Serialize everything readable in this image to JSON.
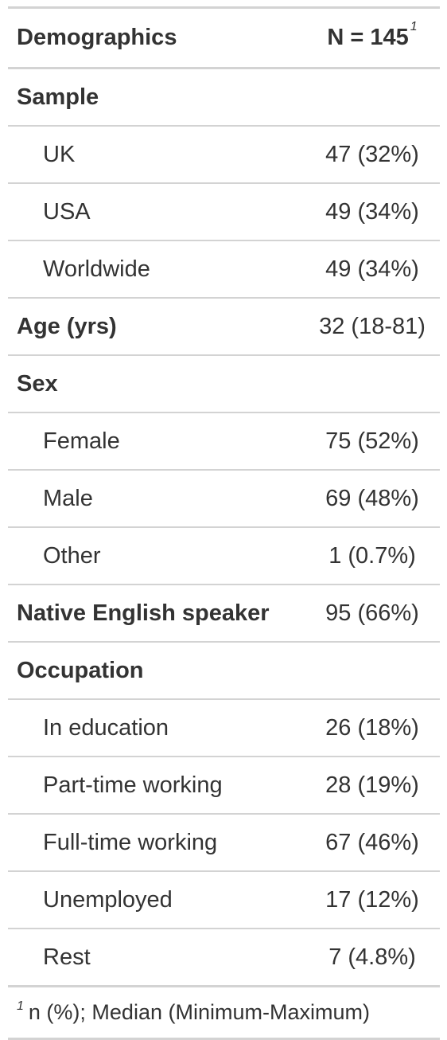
{
  "header": {
    "col_label": "Demographics",
    "col_value": "N = 145",
    "col_value_marker": "1"
  },
  "rows": [
    {
      "label": "Sample",
      "value": "",
      "kind": "group"
    },
    {
      "label": "UK",
      "value": "47 (32%)",
      "kind": "sub"
    },
    {
      "label": "USA",
      "value": "49 (34%)",
      "kind": "sub"
    },
    {
      "label": "Worldwide",
      "value": "49 (34%)",
      "kind": "sub"
    },
    {
      "label": "Age (yrs)",
      "value": "32 (18-81)",
      "kind": "group"
    },
    {
      "label": "Sex",
      "value": "",
      "kind": "group"
    },
    {
      "label": "Female",
      "value": "75 (52%)",
      "kind": "sub"
    },
    {
      "label": "Male",
      "value": "69 (48%)",
      "kind": "sub"
    },
    {
      "label": "Other",
      "value": "1 (0.7%)",
      "kind": "sub"
    },
    {
      "label": "Native English speaker",
      "value": "95 (66%)",
      "kind": "group"
    },
    {
      "label": "Occupation",
      "value": "",
      "kind": "group"
    },
    {
      "label": "In education",
      "value": "26 (18%)",
      "kind": "sub"
    },
    {
      "label": "Part-time working",
      "value": "28 (19%)",
      "kind": "sub"
    },
    {
      "label": "Full-time working",
      "value": "67 (46%)",
      "kind": "sub"
    },
    {
      "label": "Unemployed",
      "value": "17 (12%)",
      "kind": "sub"
    },
    {
      "label": "Rest",
      "value": "7 (4.8%)",
      "kind": "sub"
    }
  ],
  "footnote": {
    "marker": "1",
    "text": "n (%); Median (Minimum-Maximum)"
  }
}
